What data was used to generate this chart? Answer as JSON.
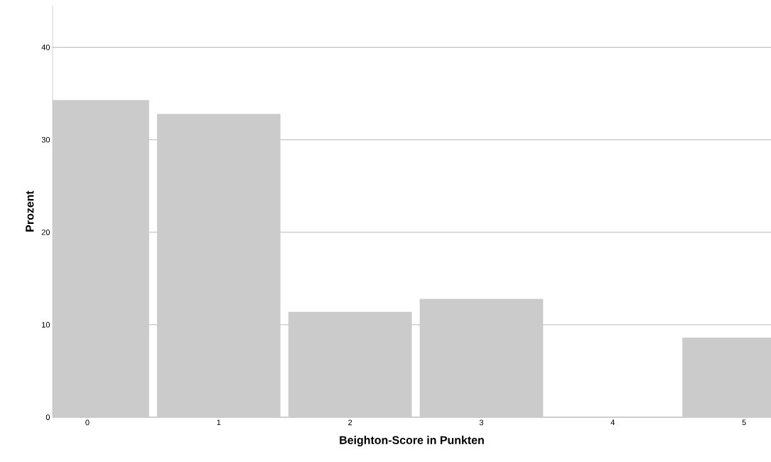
{
  "chart_data": {
    "type": "bar",
    "xlabel": "Beighton-Score in Punkten",
    "ylabel": "Prozent",
    "categories": [
      "0",
      "1",
      "2",
      "3",
      "4",
      "5"
    ],
    "values": [
      34.3,
      32.8,
      11.4,
      12.8,
      0,
      8.6
    ],
    "color": "#cbcbcb",
    "ylim": [
      0,
      44.5
    ],
    "yticks": [
      0,
      10,
      20,
      30,
      40
    ],
    "grid": "y"
  }
}
